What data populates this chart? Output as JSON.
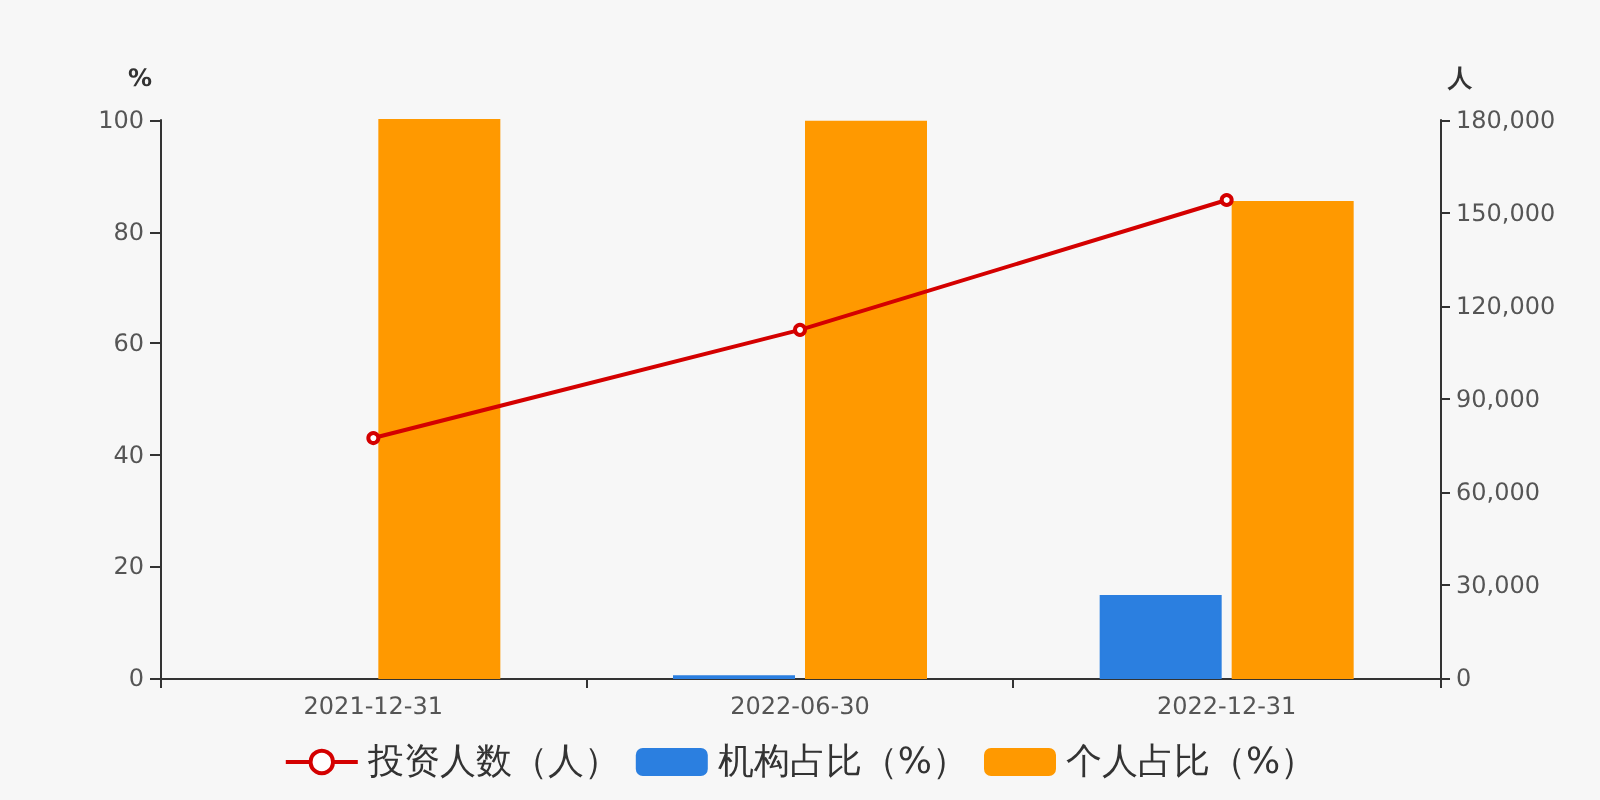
{
  "chart_data": {
    "type": "bar",
    "ylabel": "%",
    "y2label": "人",
    "categories": [
      "2021-12-31",
      "2022-06-30",
      "2022-12-31"
    ],
    "series": [
      {
        "name": "投资人数（人）",
        "type": "line",
        "axis": "y2",
        "color": "#d40000",
        "values": [
          77400,
          112300,
          154200
        ]
      },
      {
        "name": "机构占比（%）",
        "color": "#2b7fe0",
        "values": [
          null,
          0.3,
          14.7
        ]
      },
      {
        "name": "个人占比（%）",
        "color": "#ff9900",
        "values": [
          100,
          99.7,
          85.3
        ]
      }
    ],
    "ylim": [
      0,
      100
    ],
    "yticks": [
      0,
      20,
      40,
      60,
      80,
      100
    ],
    "y2lim": [
      0,
      180000
    ],
    "y2ticks": [
      0,
      {
        "value": 30000,
        "label": "30,000"
      },
      {
        "value": 60000,
        "label": "60,000"
      },
      {
        "value": 90000,
        "label": "90,000"
      },
      {
        "value": 120000,
        "label": "120,000"
      },
      {
        "value": 150000,
        "label": "150,000"
      },
      {
        "value": 180000,
        "label": "180,000"
      }
    ],
    "grid": false,
    "legend": "bottom",
    "marker": "circle",
    "line_style": "solid"
  }
}
